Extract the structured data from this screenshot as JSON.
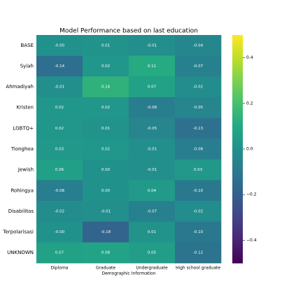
{
  "chart_data": {
    "type": "heatmap",
    "title": "Model Performance based on last education",
    "x_label": "Demographic Information",
    "x_categories": [
      "Diploma",
      "Graduate",
      "Undergraduate",
      "High school graduate"
    ],
    "y_categories": [
      "BASE",
      "Syiah",
      "Ahmadiyah",
      "Kristen",
      "LGBTQ+",
      "Tionghoa",
      "Jewish",
      "Rohingya",
      "Disabilitas",
      "Terpolarisasi",
      "UNKNOWN"
    ],
    "values": [
      [
        0,
        0.01,
        -0.01,
        -0.04
      ],
      [
        -0.14,
        0.02,
        0.11,
        -0.07
      ],
      [
        -0.01,
        0.14,
        0.07,
        -0.02
      ],
      [
        0.02,
        0.02,
        -0.08,
        -0.05
      ],
      [
        0.02,
        0.01,
        -0.05,
        -0.13
      ],
      [
        0.03,
        0.02,
        -0.01,
        -0.08
      ],
      [
        0.06,
        0,
        -0.01,
        0.03
      ],
      [
        -0.08,
        0,
        0.04,
        -0.1
      ],
      [
        -0.02,
        -0.01,
        -0.07,
        -0.02
      ],
      [
        0,
        -0.18,
        0.01,
        -0.1
      ],
      [
        0.07,
        0.08,
        0.05,
        -0.12
      ]
    ],
    "value_labels": [
      [
        "-0.00",
        "0.01",
        "-0.01",
        "-0.04"
      ],
      [
        "-0.14",
        "0.02",
        "0.11",
        "-0.07"
      ],
      [
        "-0.01",
        "0.14",
        "0.07",
        "-0.02"
      ],
      [
        "0.02",
        "0.02",
        "-0.08",
        "-0.05"
      ],
      [
        "0.02",
        "0.01",
        "-0.05",
        "-0.13"
      ],
      [
        "0.03",
        "0.02",
        "-0.01",
        "-0.08"
      ],
      [
        "0.06",
        "0.00",
        "-0.01",
        "0.03"
      ],
      [
        "-0.08",
        "0.00",
        "0.04",
        "-0.10"
      ],
      [
        "-0.02",
        "-0.01",
        "-0.07",
        "-0.02"
      ],
      [
        "-0.00",
        "-0.18",
        "0.01",
        "-0.10"
      ],
      [
        "0.07",
        "0.08",
        "0.05",
        "-0.12"
      ]
    ],
    "colormap": "viridis",
    "clim": [
      -0.5,
      0.5
    ],
    "cticks": [
      {
        "value": -0.4,
        "label": "−0.4"
      },
      {
        "value": -0.2,
        "label": "−0.2"
      },
      {
        "value": 0,
        "label": "0.0"
      },
      0.2,
      0.4
    ]
  }
}
